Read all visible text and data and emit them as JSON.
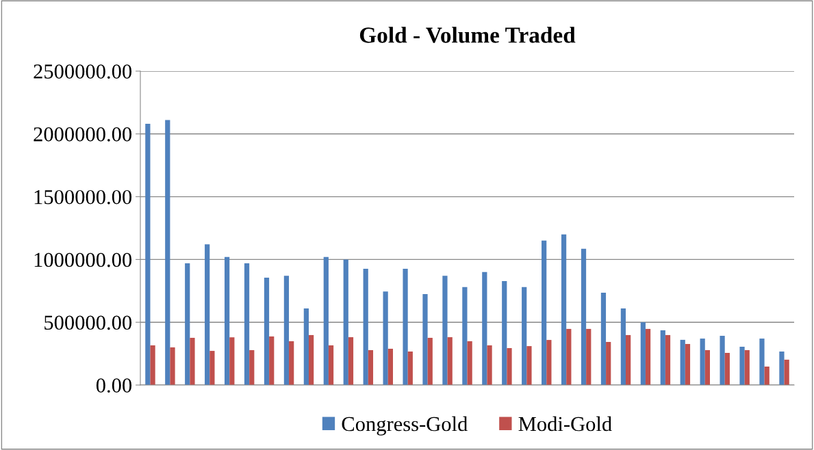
{
  "chart_data": {
    "type": "bar",
    "title": "Gold - Volume Traded",
    "categories": [
      null,
      null,
      null,
      null,
      null,
      null,
      null,
      null,
      null,
      null,
      null,
      null,
      null,
      null,
      null,
      null,
      null,
      null,
      null,
      null,
      null,
      null,
      null,
      null,
      null,
      null,
      null,
      null,
      null,
      null,
      null,
      null,
      null
    ],
    "series": [
      {
        "name": "Congress-Gold",
        "color": "#4f81bd",
        "values": [
          2080000,
          2110000,
          970000,
          1120000,
          1020000,
          970000,
          855000,
          870000,
          610000,
          1020000,
          1000000,
          926000,
          745000,
          926000,
          724000,
          870000,
          780000,
          900000,
          828000,
          780000,
          1150000,
          1200000,
          1085000,
          735000,
          610000,
          500000,
          436000,
          360000,
          370000,
          392000,
          305000,
          370000,
          267000
        ]
      },
      {
        "name": "Modi-Gold",
        "color": "#c0504d",
        "values": [
          316000,
          300000,
          376000,
          272000,
          380000,
          278000,
          387000,
          349000,
          398000,
          316000,
          381000,
          278000,
          289000,
          267000,
          376000,
          381000,
          349000,
          316000,
          294000,
          310000,
          359000,
          447000,
          447000,
          343000,
          398000,
          447000,
          398000,
          327000,
          278000,
          256000,
          278000,
          147000,
          202000
        ]
      }
    ],
    "ylim": [
      0,
      2500000
    ],
    "yticks": [
      {
        "value": 0,
        "label": "0.00"
      },
      {
        "value": 500000,
        "label": "500000.00"
      },
      {
        "value": 1000000,
        "label": "1000000.00"
      },
      {
        "value": 1500000,
        "label": "1500000.00"
      },
      {
        "value": 2000000,
        "label": "2000000.00"
      },
      {
        "value": 2500000,
        "label": "2500000.00"
      }
    ],
    "grid": "y",
    "legend": "bottom"
  }
}
